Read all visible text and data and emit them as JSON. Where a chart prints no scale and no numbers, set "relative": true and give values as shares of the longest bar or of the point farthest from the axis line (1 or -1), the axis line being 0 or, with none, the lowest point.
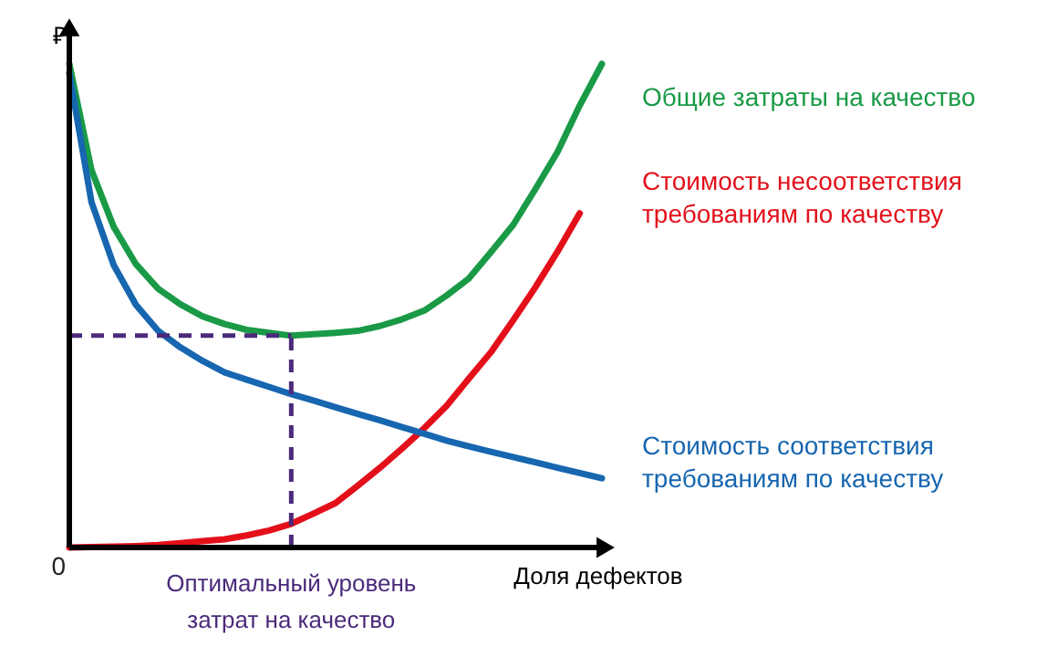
{
  "chart_data": {
    "type": "line",
    "relative": true,
    "ylabel": "₽",
    "xlabel": "Доля дефектов",
    "annotations": [
      "0",
      "Оптимальный уровень затрат на качество"
    ],
    "line_style": "solid",
    "categories": [
      null,
      null,
      null,
      null,
      null,
      null,
      null,
      null,
      null,
      null,
      null,
      null,
      null,
      null,
      null,
      null,
      null,
      null,
      null,
      null,
      null,
      null,
      null,
      null,
      null
    ],
    "series": [
      {
        "name": "Общие затраты на качество",
        "color": "#1a9a46",
        "values": [
          1.0,
          0.78,
          0.663,
          0.586,
          0.535,
          0.503,
          0.478,
          0.462,
          0.45,
          0.444,
          0.438,
          0.441,
          0.444,
          0.448,
          0.458,
          0.472,
          0.49,
          0.521,
          0.556,
          0.611,
          0.667,
          0.741,
          0.818,
          0.914,
          1.0
        ]
      },
      {
        "name": "Стоимость несоответствия требованиям по качеству",
        "color": "#e3101a",
        "values": [
          0,
          0.001,
          0.002,
          0.003,
          0.005,
          0.009,
          0.013,
          0.017,
          0.025,
          0.035,
          0.049,
          0.07,
          0.092,
          0.128,
          0.165,
          0.205,
          0.247,
          0.293,
          0.349,
          0.404,
          0.47,
          0.538,
          0.612,
          0.691,
          null
        ]
      },
      {
        "name": "Стоимость соответствия требованиям по качеству",
        "color": "#1766b0",
        "values": [
          0.981,
          0.714,
          0.584,
          0.502,
          0.448,
          0.414,
          0.386,
          0.362,
          0.347,
          0.332,
          0.317,
          0.304,
          0.29,
          0.276,
          0.263,
          0.249,
          0.235,
          0.221,
          0.209,
          0.198,
          0.187,
          0.176,
          0.165,
          0.154,
          0.143
        ]
      }
    ],
    "ref_lines": [
      {
        "axis": "y",
        "value": 0.438,
        "color": "#4b2a7b",
        "line_style": "dashed"
      }
    ]
  }
}
